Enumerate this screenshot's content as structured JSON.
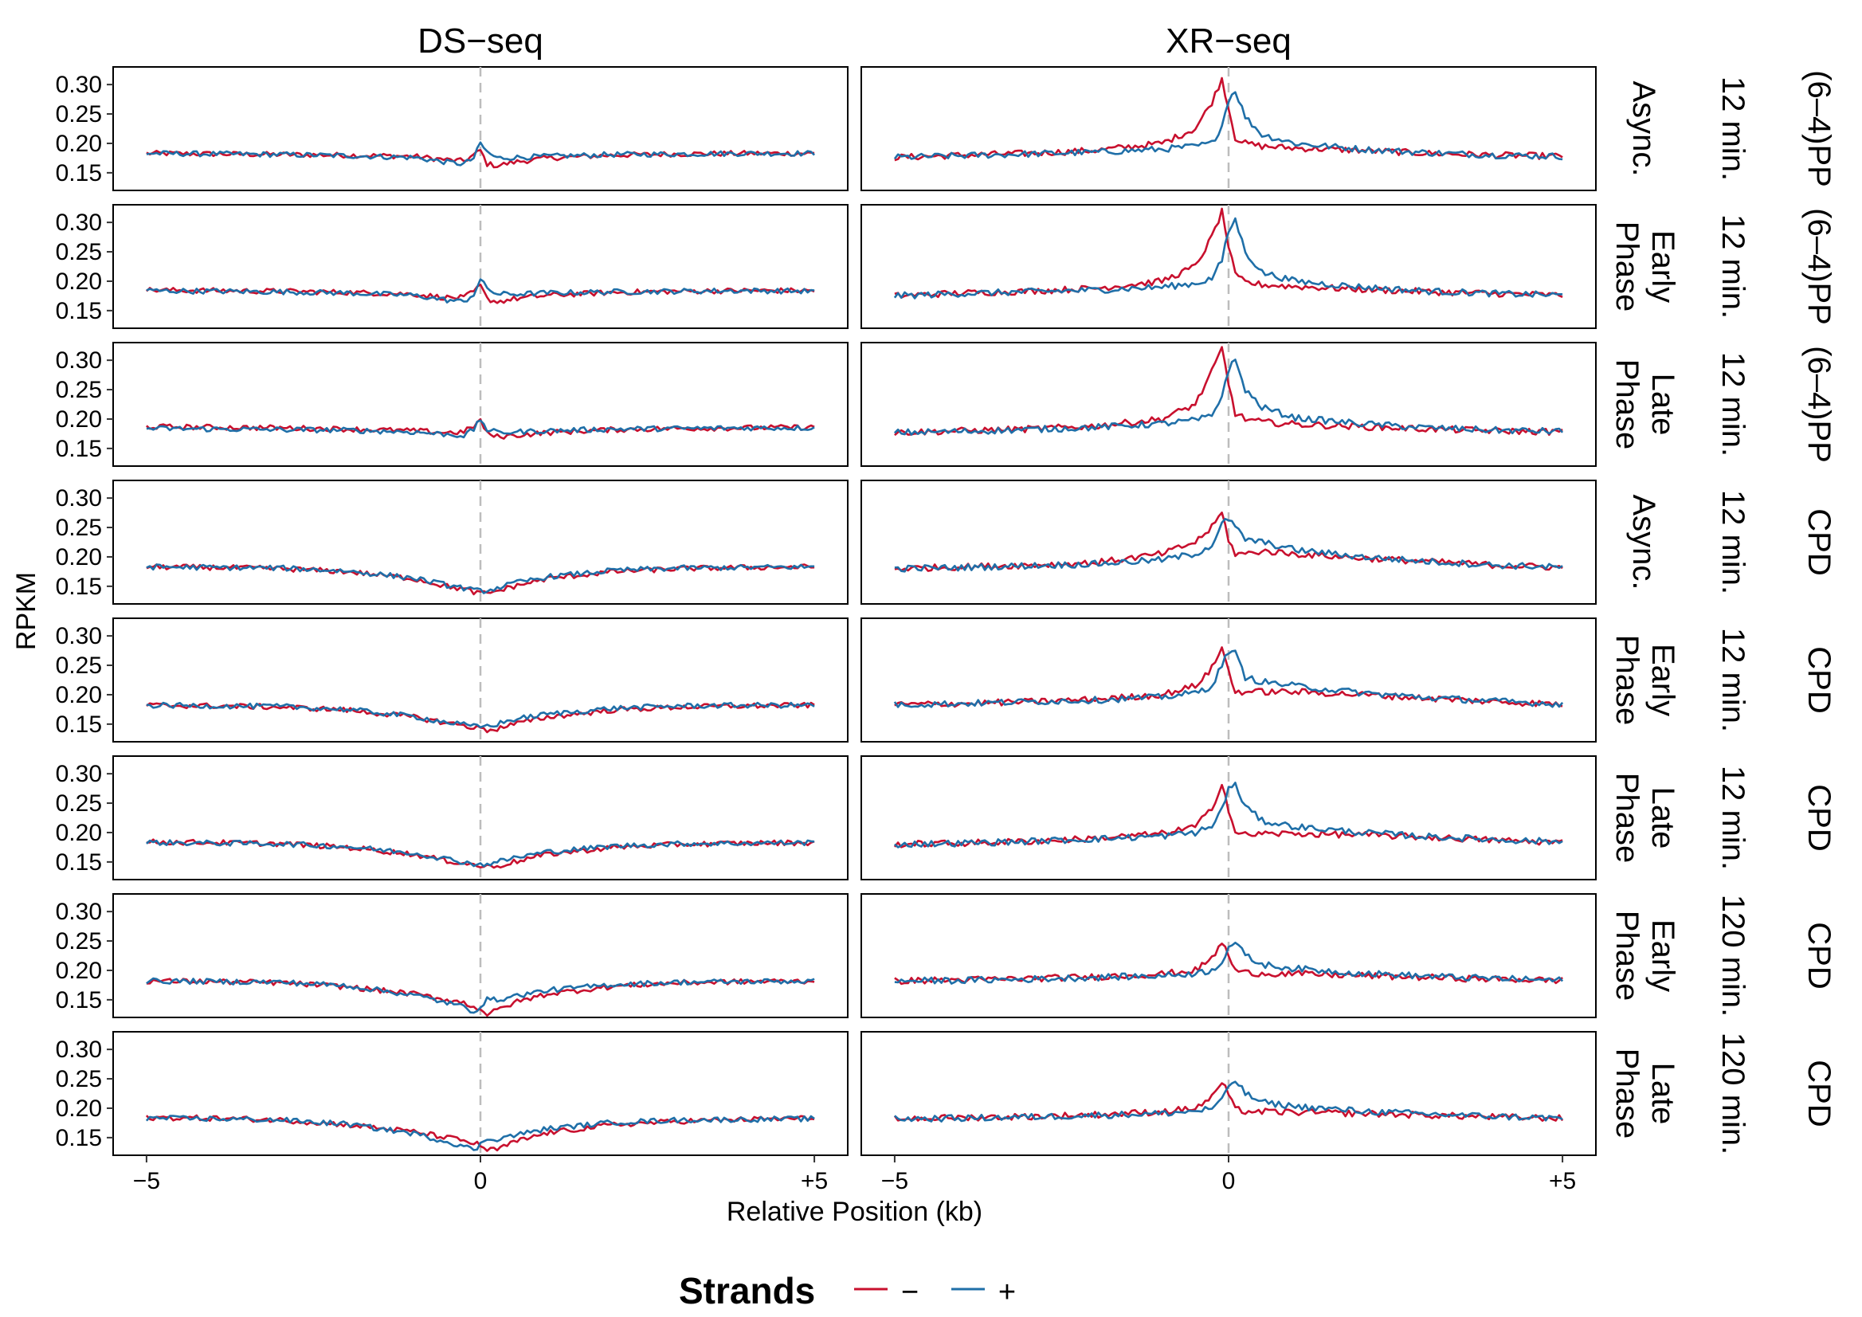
{
  "chart_data": {
    "type": "line",
    "layout": "faceted grid, 8 rows x 2 columns",
    "columns": [
      "DS−seq",
      "XR−seq"
    ],
    "xlabel": "Relative Position (kb)",
    "ylabel": "RPKM",
    "x_ticks": [
      "−5",
      "0",
      "+5"
    ],
    "x_tick_values": [
      -5,
      0,
      5
    ],
    "xlim": [
      -5.5,
      5.5
    ],
    "y_ticks": [
      "0.15",
      "0.20",
      "0.25",
      "0.30"
    ],
    "y_tick_values": [
      0.15,
      0.2,
      0.25,
      0.3
    ],
    "ylim": [
      0.12,
      0.33
    ],
    "reference_line_x": 0,
    "legend": {
      "title": "Strands",
      "placement": "bottom",
      "entries": [
        {
          "label": "−",
          "color": "#c8102e"
        },
        {
          "label": "+",
          "color": "#1f6fa8"
        }
      ]
    },
    "rows": [
      {
        "damage": "(6–4)PP",
        "time": "12 min.",
        "phase": [
          "Async."
        ]
      },
      {
        "damage": "(6–4)PP",
        "time": "12 min.",
        "phase": [
          "Early",
          "Phase"
        ]
      },
      {
        "damage": "(6–4)PP",
        "time": "12 min.",
        "phase": [
          "Late",
          "Phase"
        ]
      },
      {
        "damage": "CPD",
        "time": "12 min.",
        "phase": [
          "Async."
        ]
      },
      {
        "damage": "CPD",
        "time": "12 min.",
        "phase": [
          "Early",
          "Phase"
        ]
      },
      {
        "damage": "CPD",
        "time": "12 min.",
        "phase": [
          "Late",
          "Phase"
        ]
      },
      {
        "damage": "CPD",
        "time": "120 min.",
        "phase": [
          "Early",
          "Phase"
        ]
      },
      {
        "damage": "CPD",
        "time": "120 min.",
        "phase": [
          "Late",
          "Phase"
        ]
      }
    ],
    "series_profiles": {
      "x": [
        -5,
        -4,
        -3,
        -2,
        -1,
        -0.5,
        -0.25,
        -0.1,
        0,
        0.1,
        0.25,
        0.5,
        1,
        2,
        3,
        4,
        5
      ],
      "DS−seq": [
        {
          "minus": [
            0.183,
            0.182,
            0.181,
            0.18,
            0.178,
            0.172,
            0.17,
            0.18,
            0.188,
            0.165,
            0.162,
            0.168,
            0.175,
            0.18,
            0.182,
            0.183,
            0.183
          ],
          "plus": [
            0.183,
            0.182,
            0.181,
            0.179,
            0.176,
            0.168,
            0.165,
            0.175,
            0.2,
            0.185,
            0.175,
            0.176,
            0.178,
            0.181,
            0.182,
            0.183,
            0.183
          ]
        },
        {
          "minus": [
            0.185,
            0.184,
            0.183,
            0.181,
            0.178,
            0.172,
            0.172,
            0.182,
            0.192,
            0.17,
            0.165,
            0.17,
            0.176,
            0.181,
            0.183,
            0.184,
            0.184
          ],
          "plus": [
            0.184,
            0.183,
            0.182,
            0.18,
            0.176,
            0.168,
            0.165,
            0.178,
            0.202,
            0.188,
            0.178,
            0.178,
            0.18,
            0.182,
            0.183,
            0.184,
            0.183
          ]
        },
        {
          "minus": [
            0.187,
            0.186,
            0.185,
            0.183,
            0.18,
            0.177,
            0.178,
            0.188,
            0.198,
            0.175,
            0.17,
            0.172,
            0.177,
            0.182,
            0.184,
            0.185,
            0.186
          ],
          "plus": [
            0.184,
            0.183,
            0.182,
            0.181,
            0.178,
            0.174,
            0.172,
            0.182,
            0.2,
            0.182,
            0.177,
            0.178,
            0.18,
            0.183,
            0.184,
            0.185,
            0.185
          ]
        },
        {
          "minus": [
            0.183,
            0.182,
            0.18,
            0.175,
            0.163,
            0.15,
            0.145,
            0.14,
            0.138,
            0.138,
            0.142,
            0.15,
            0.163,
            0.175,
            0.18,
            0.182,
            0.183
          ],
          "plus": [
            0.183,
            0.182,
            0.181,
            0.176,
            0.164,
            0.152,
            0.147,
            0.143,
            0.142,
            0.143,
            0.147,
            0.155,
            0.166,
            0.177,
            0.181,
            0.182,
            0.183
          ]
        },
        {
          "minus": [
            0.182,
            0.181,
            0.179,
            0.174,
            0.162,
            0.152,
            0.148,
            0.144,
            0.143,
            0.14,
            0.142,
            0.15,
            0.162,
            0.174,
            0.179,
            0.181,
            0.182
          ],
          "plus": [
            0.182,
            0.181,
            0.18,
            0.175,
            0.163,
            0.153,
            0.149,
            0.146,
            0.146,
            0.147,
            0.15,
            0.158,
            0.167,
            0.177,
            0.181,
            0.182,
            0.182
          ]
        },
        {
          "minus": [
            0.184,
            0.183,
            0.181,
            0.175,
            0.163,
            0.152,
            0.148,
            0.145,
            0.143,
            0.142,
            0.143,
            0.15,
            0.163,
            0.175,
            0.18,
            0.182,
            0.183
          ],
          "plus": [
            0.183,
            0.182,
            0.181,
            0.176,
            0.165,
            0.155,
            0.15,
            0.147,
            0.145,
            0.147,
            0.15,
            0.157,
            0.167,
            0.177,
            0.181,
            0.182,
            0.183
          ]
        },
        {
          "minus": [
            0.182,
            0.181,
            0.179,
            0.172,
            0.16,
            0.15,
            0.145,
            0.138,
            0.135,
            0.125,
            0.132,
            0.145,
            0.16,
            0.173,
            0.179,
            0.181,
            0.182
          ],
          "plus": [
            0.182,
            0.181,
            0.18,
            0.174,
            0.158,
            0.145,
            0.138,
            0.13,
            0.14,
            0.15,
            0.15,
            0.156,
            0.166,
            0.176,
            0.18,
            0.181,
            0.182
          ]
        },
        {
          "minus": [
            0.184,
            0.183,
            0.18,
            0.172,
            0.16,
            0.15,
            0.145,
            0.14,
            0.138,
            0.128,
            0.13,
            0.142,
            0.158,
            0.172,
            0.178,
            0.181,
            0.183
          ],
          "plus": [
            0.183,
            0.182,
            0.18,
            0.173,
            0.157,
            0.143,
            0.136,
            0.128,
            0.138,
            0.148,
            0.148,
            0.154,
            0.165,
            0.176,
            0.18,
            0.181,
            0.182
          ]
        }
      ],
      "XR−seq": [
        {
          "minus": [
            0.176,
            0.18,
            0.183,
            0.188,
            0.2,
            0.225,
            0.27,
            0.31,
            0.26,
            0.21,
            0.2,
            0.195,
            0.192,
            0.188,
            0.183,
            0.18,
            0.178
          ],
          "plus": [
            0.176,
            0.179,
            0.182,
            0.185,
            0.19,
            0.195,
            0.2,
            0.23,
            0.275,
            0.29,
            0.245,
            0.215,
            0.2,
            0.19,
            0.184,
            0.18,
            0.178
          ]
        },
        {
          "minus": [
            0.175,
            0.18,
            0.183,
            0.188,
            0.2,
            0.225,
            0.275,
            0.318,
            0.26,
            0.21,
            0.198,
            0.194,
            0.191,
            0.186,
            0.182,
            0.179,
            0.176
          ],
          "plus": [
            0.175,
            0.179,
            0.182,
            0.185,
            0.19,
            0.196,
            0.205,
            0.235,
            0.285,
            0.305,
            0.25,
            0.215,
            0.2,
            0.19,
            0.183,
            0.179,
            0.176
          ]
        },
        {
          "minus": [
            0.177,
            0.18,
            0.183,
            0.188,
            0.2,
            0.225,
            0.28,
            0.32,
            0.26,
            0.21,
            0.2,
            0.195,
            0.191,
            0.187,
            0.183,
            0.18,
            0.178
          ],
          "plus": [
            0.177,
            0.179,
            0.182,
            0.186,
            0.192,
            0.198,
            0.205,
            0.24,
            0.285,
            0.3,
            0.25,
            0.22,
            0.202,
            0.192,
            0.185,
            0.181,
            0.179
          ]
        },
        {
          "minus": [
            0.18,
            0.183,
            0.186,
            0.19,
            0.205,
            0.225,
            0.25,
            0.275,
            0.23,
            0.205,
            0.205,
            0.21,
            0.205,
            0.198,
            0.192,
            0.186,
            0.182
          ],
          "plus": [
            0.18,
            0.182,
            0.185,
            0.188,
            0.195,
            0.205,
            0.22,
            0.255,
            0.265,
            0.25,
            0.23,
            0.225,
            0.212,
            0.2,
            0.192,
            0.186,
            0.182
          ]
        },
        {
          "minus": [
            0.183,
            0.185,
            0.188,
            0.192,
            0.2,
            0.215,
            0.245,
            0.28,
            0.24,
            0.205,
            0.205,
            0.205,
            0.205,
            0.2,
            0.194,
            0.188,
            0.184
          ],
          "plus": [
            0.183,
            0.185,
            0.188,
            0.191,
            0.196,
            0.203,
            0.215,
            0.25,
            0.275,
            0.27,
            0.23,
            0.222,
            0.215,
            0.203,
            0.195,
            0.189,
            0.184
          ]
        },
        {
          "minus": [
            0.18,
            0.182,
            0.185,
            0.19,
            0.198,
            0.21,
            0.24,
            0.285,
            0.24,
            0.2,
            0.196,
            0.198,
            0.198,
            0.196,
            0.192,
            0.187,
            0.183
          ],
          "plus": [
            0.18,
            0.182,
            0.185,
            0.189,
            0.194,
            0.2,
            0.21,
            0.24,
            0.275,
            0.28,
            0.245,
            0.22,
            0.21,
            0.2,
            0.193,
            0.188,
            0.184
          ]
        },
        {
          "minus": [
            0.182,
            0.184,
            0.186,
            0.189,
            0.194,
            0.2,
            0.22,
            0.248,
            0.225,
            0.2,
            0.196,
            0.195,
            0.194,
            0.191,
            0.188,
            0.185,
            0.183
          ],
          "plus": [
            0.182,
            0.183,
            0.185,
            0.188,
            0.191,
            0.195,
            0.2,
            0.215,
            0.24,
            0.248,
            0.225,
            0.21,
            0.203,
            0.195,
            0.19,
            0.186,
            0.183
          ]
        },
        {
          "minus": [
            0.182,
            0.184,
            0.186,
            0.189,
            0.194,
            0.2,
            0.218,
            0.245,
            0.222,
            0.198,
            0.195,
            0.194,
            0.193,
            0.191,
            0.188,
            0.185,
            0.183
          ],
          "plus": [
            0.182,
            0.183,
            0.185,
            0.188,
            0.191,
            0.195,
            0.2,
            0.212,
            0.238,
            0.248,
            0.225,
            0.21,
            0.203,
            0.195,
            0.19,
            0.186,
            0.183
          ]
        }
      ]
    }
  }
}
